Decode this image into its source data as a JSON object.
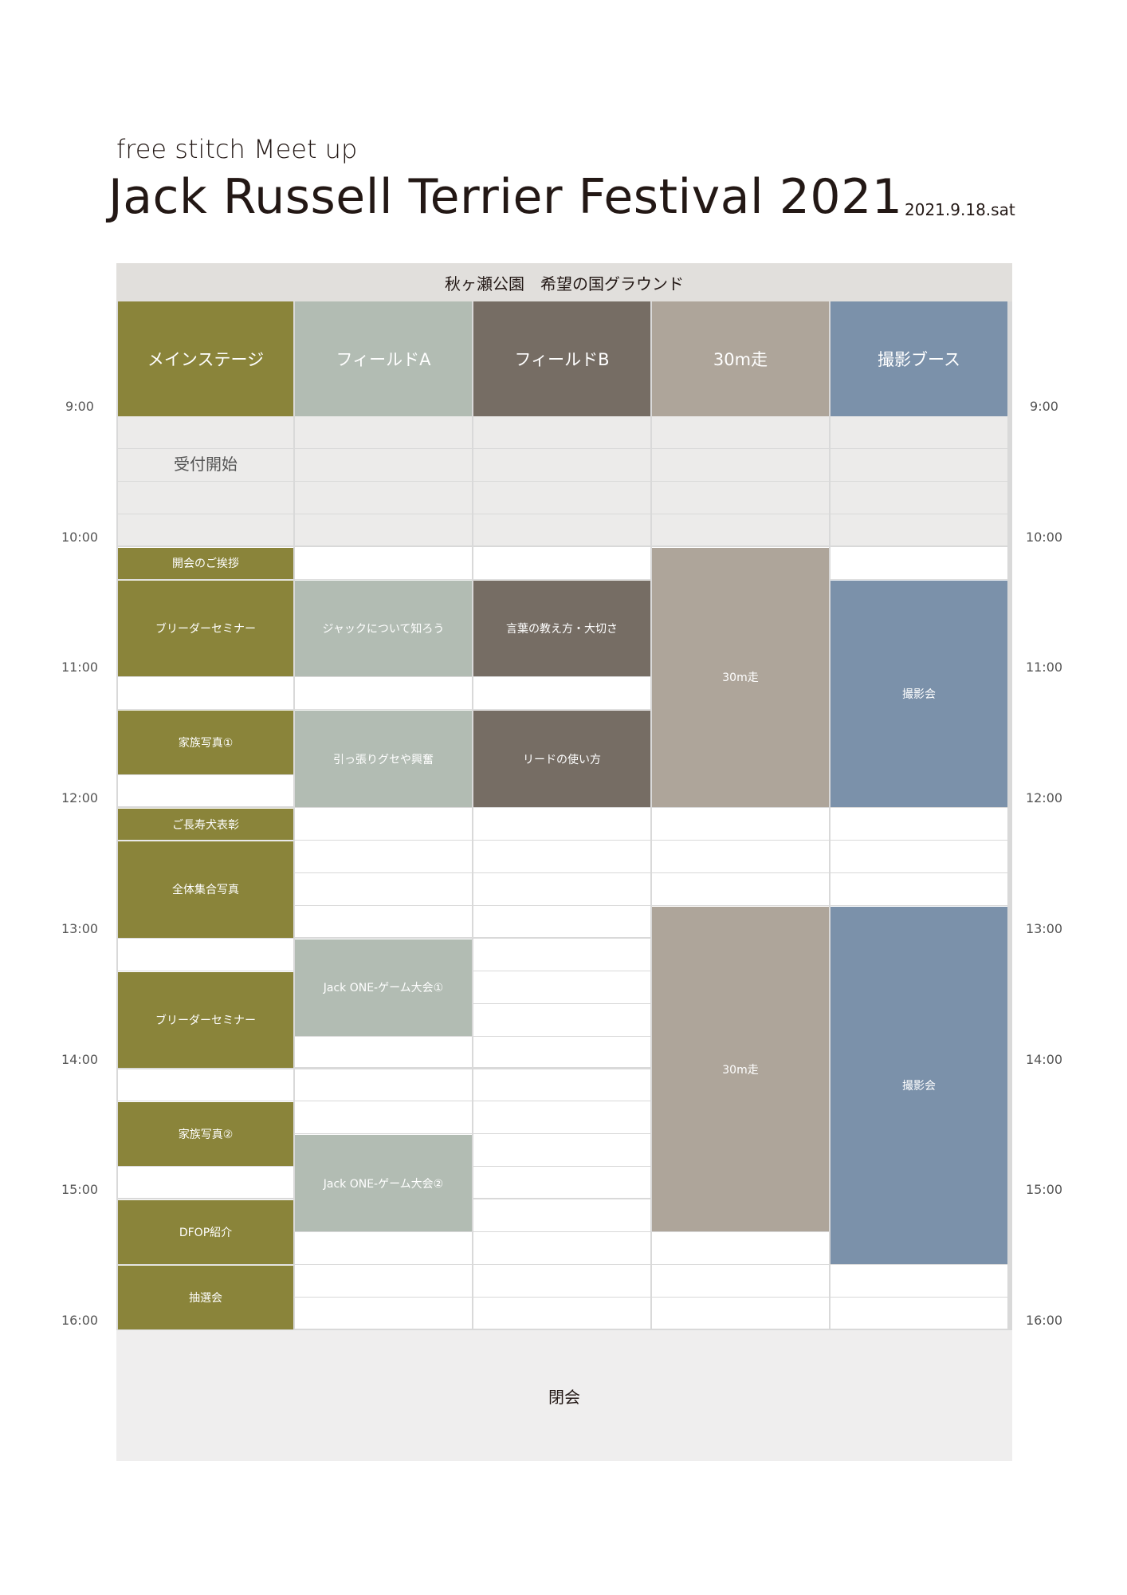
{
  "header": {
    "subtitle": "free stitch Meet up",
    "title": "Jack Russell Terrier Festival 2021",
    "date": "2021.9.18.sat"
  },
  "venue": "秋ヶ瀬公園　希望の国グラウンド",
  "lanes": [
    {
      "label": "メインステージ",
      "color": "#8a843a"
    },
    {
      "label": "フィールドA",
      "color": "#b2bcb3"
    },
    {
      "label": "フィールドB",
      "color": "#766d64"
    },
    {
      "label": "30m走",
      "color": "#aea59a"
    },
    {
      "label": "撮影ブース",
      "color": "#7b91aa"
    }
  ],
  "times": [
    "9:00",
    "10:00",
    "11:00",
    "12:00",
    "13:00",
    "14:00",
    "15:00",
    "16:00"
  ],
  "reception": "受付開始",
  "closing": "閉会",
  "events": [
    {
      "lane": 0,
      "label": "開会のご挨拶",
      "start": "10:00",
      "end": "10:15"
    },
    {
      "lane": 0,
      "label": "ブリーダーセミナー",
      "start": "10:15",
      "end": "11:00"
    },
    {
      "lane": 0,
      "label": "家族写真①",
      "start": "11:15",
      "end": "11:45"
    },
    {
      "lane": 0,
      "label": "ご長寿犬表彰",
      "start": "12:00",
      "end": "12:15"
    },
    {
      "lane": 0,
      "label": "全体集合写真",
      "start": "12:15",
      "end": "13:00"
    },
    {
      "lane": 0,
      "label": "ブリーダーセミナー",
      "start": "13:15",
      "end": "14:00"
    },
    {
      "lane": 0,
      "label": "家族写真②",
      "start": "14:15",
      "end": "14:45"
    },
    {
      "lane": 0,
      "label": "DFOP紹介",
      "start": "15:00",
      "end": "15:30"
    },
    {
      "lane": 0,
      "label": "抽選会",
      "start": "15:30",
      "end": "16:00"
    },
    {
      "lane": 1,
      "label": "ジャックについて知ろう",
      "start": "10:15",
      "end": "11:00"
    },
    {
      "lane": 1,
      "label": "引っ張りグセや興奮",
      "start": "11:15",
      "end": "12:00"
    },
    {
      "lane": 1,
      "label": "Jack ONE-ゲーム大会①",
      "start": "13:00",
      "end": "13:45"
    },
    {
      "lane": 1,
      "label": "Jack ONE-ゲーム大会②",
      "start": "14:30",
      "end": "15:15"
    },
    {
      "lane": 2,
      "label": "言葉の教え方・大切さ",
      "start": "10:15",
      "end": "11:00"
    },
    {
      "lane": 2,
      "label": "リードの使い方",
      "start": "11:15",
      "end": "12:00"
    },
    {
      "lane": 3,
      "label": "30m走",
      "start": "10:00",
      "end": "12:00"
    },
    {
      "lane": 3,
      "label": "30m走",
      "start": "12:45",
      "end": "15:15"
    },
    {
      "lane": 4,
      "label": "撮影会",
      "start": "10:15",
      "end": "12:00"
    },
    {
      "lane": 4,
      "label": "撮影会",
      "start": "12:45",
      "end": "15:30"
    }
  ]
}
